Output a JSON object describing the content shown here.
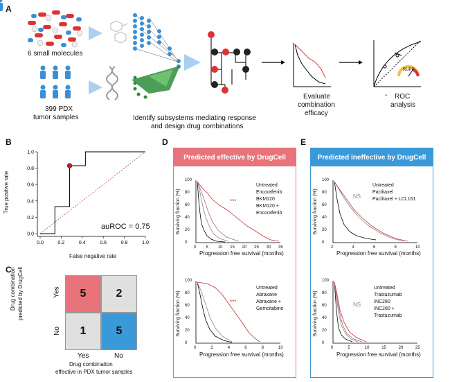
{
  "panel_labels": {
    "a": "A",
    "b": "B",
    "c": "C",
    "d": "D",
    "e": "E"
  },
  "panel_a": {
    "molecules_label": "6 small molecules",
    "samples_label_1": "399 PDX",
    "samples_label_2": "tumor samples",
    "identify_1": "Identify subsystems mediating response",
    "identify_2": "and design drug combinations",
    "evaluate_1": "Evaluate",
    "evaluate_2": "combination",
    "evaluate_3": "efficacy",
    "roc_1": "ROC",
    "roc_2": "analysis",
    "rupp_label": "RUPP",
    "dash": "-"
  },
  "panel_b": {
    "ylabel": "True positive rate",
    "xlabel": "False negative rate",
    "auroc": "auROC = 0.75",
    "xticks": [
      "0.0",
      "0.2",
      "0.4",
      "0.6",
      "0.8",
      "1.0"
    ],
    "yticks": [
      "0.0",
      "0.2",
      "0.4",
      "0.6",
      "0.8",
      "1.0"
    ]
  },
  "panel_c": {
    "ylabel_1": "Drug combination",
    "ylabel_2": "predicted by DrugCell",
    "xlabel_1": "Drug combination",
    "xlabel_2": "effective in PDX tumor samples",
    "row_yes": "Yes",
    "row_no": "No",
    "col_yes": "Yes",
    "col_no": "No",
    "cells": [
      "5",
      "2",
      "1",
      "5"
    ],
    "colors": {
      "tp": "#e8737a",
      "fp": "#e0e0e0",
      "fn": "#e0e0e0",
      "tn": "#3a9ad9"
    }
  },
  "panel_d": {
    "header": "Predicted effective by DrugCell",
    "header_color": "#e8737a",
    "top": {
      "ylabel": "Surviving fraction (%)",
      "xlabel": "Progression free survival (months)",
      "xticks": [
        "0",
        "5",
        "10",
        "15",
        "20",
        "25",
        "30",
        "35"
      ],
      "yticks": [
        "0",
        "20",
        "40",
        "60",
        "80",
        "100"
      ],
      "sig": "***",
      "legend": [
        "Untreated",
        "Encorafenib",
        "BKM120",
        "BKM120 +",
        "Encorafenib"
      ]
    },
    "bottom": {
      "ylabel": "Surviving fraction (%)",
      "xlabel": "Progression free survival (months)",
      "xticks": [
        "0",
        "2",
        "4",
        "6",
        "8",
        "10"
      ],
      "yticks": [
        "0",
        "20",
        "40",
        "60",
        "80",
        "100"
      ],
      "sig": "***",
      "legend": [
        "Untreated",
        "Abraxane",
        "Abraxane +",
        "Gemcitabine"
      ]
    }
  },
  "panel_e": {
    "header": "Predicted ineffective by DrugCell",
    "header_color": "#3a9ad9",
    "top": {
      "ylabel": "Surviving fraction (%)",
      "xlabel": "Progression free survival (months)",
      "xticks": [
        "2",
        "4",
        "6",
        "8",
        "10"
      ],
      "yticks": [
        "0",
        "20",
        "40",
        "60",
        "80",
        "100"
      ],
      "sig": "NS",
      "legend": [
        "Untreated",
        "Paclitaxel",
        "Paclitaxel + LCL161"
      ]
    },
    "bottom": {
      "ylabel": "Surviving fraction (%)",
      "xlabel": "Progression free survival (months)",
      "xticks": [
        "0",
        "5",
        "10",
        "15",
        "20",
        "25"
      ],
      "yticks": [
        "0",
        "20",
        "40",
        "60",
        "80",
        "100"
      ],
      "sig": "NS",
      "legend": [
        "Untreated",
        "Trastuzumab",
        "INC280",
        "INC280 +",
        "Trastuzumab"
      ]
    }
  },
  "chart_data": [
    {
      "type": "line",
      "title": "",
      "xlabel": "False negative rate",
      "ylabel": "True positive rate",
      "xlim": [
        0,
        1
      ],
      "ylim": [
        0,
        1
      ],
      "series": [
        {
          "x": [
            0,
            0.14,
            0.14,
            0.28,
            0.28,
            0.43,
            0.43,
            1.0
          ],
          "y": [
            0,
            0,
            0.33,
            0.33,
            0.83,
            0.83,
            1.0,
            1.0
          ]
        }
      ],
      "highlight_point": {
        "x": 0.28,
        "y": 0.83
      },
      "reference_diagonal": true,
      "annotations": [
        "auROC = 0.75"
      ]
    }
  ]
}
